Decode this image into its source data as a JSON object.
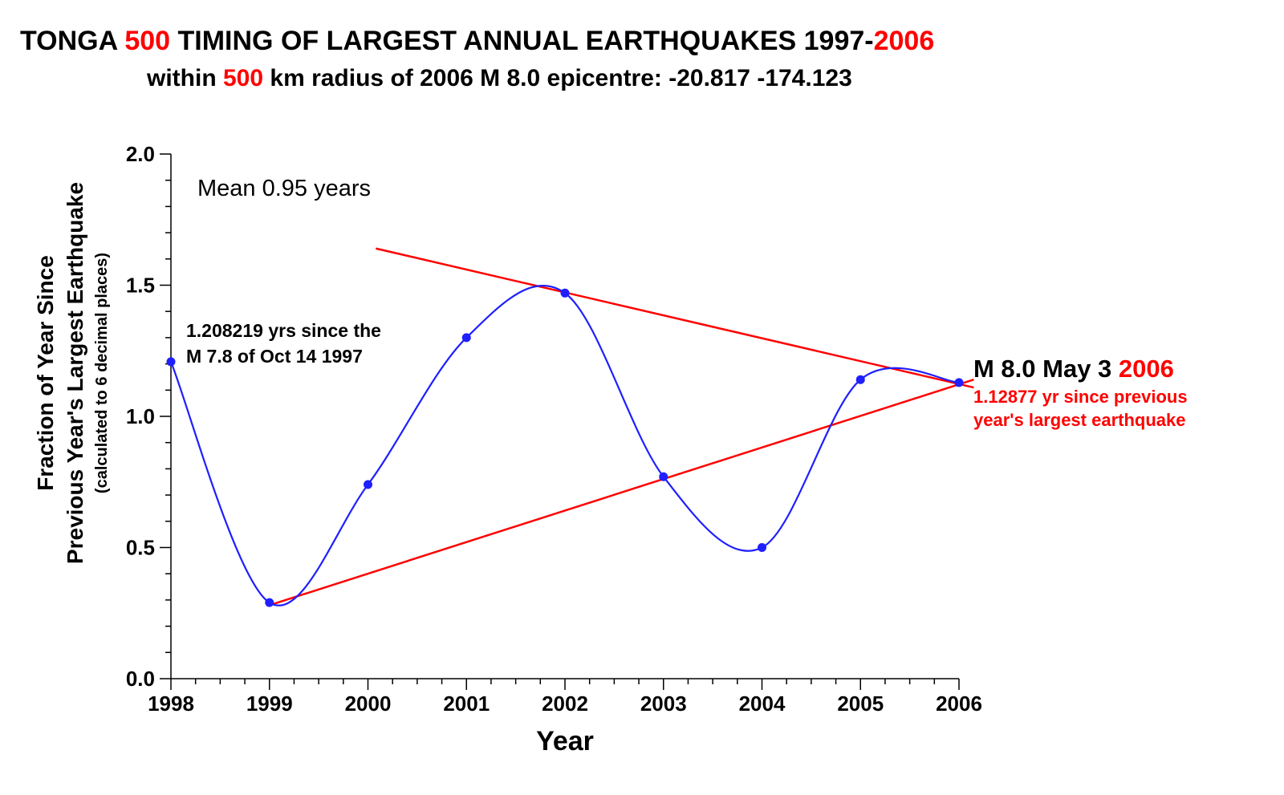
{
  "chart_data": {
    "type": "line",
    "title": {
      "part1": "TONGA ",
      "part2": "500",
      "part3": " TIMING OF LARGEST ANNUAL EARTHQUAKES 1997-",
      "part4": "2006"
    },
    "subtitle": {
      "part1": "within ",
      "part2": "500",
      "part3": " km radius of 2006 M 8.0 epicentre: -20.817 -174.123"
    },
    "xlabel": "Year",
    "ylabel": {
      "line1": "Fraction of Year Since",
      "line2": "Previous Year's Largest Earthquake",
      "line3": "(calculated to 6 decimal places)"
    },
    "xlim": [
      1998,
      2006
    ],
    "ylim": [
      0,
      2.0
    ],
    "x_ticks": [
      "1998",
      "1999",
      "2000",
      "2001",
      "2002",
      "2003",
      "2004",
      "2005",
      "2006"
    ],
    "y_ticks": [
      "0.0",
      "0.5",
      "1.0",
      "1.5",
      "2.0"
    ],
    "grid": false,
    "series": [
      {
        "color": "#1f1fff",
        "x": [
          1998,
          1999,
          2000,
          2001,
          2002,
          2003,
          2004,
          2005,
          2006
        ],
        "y": [
          1.208219,
          0.29,
          0.74,
          1.3,
          1.47,
          0.77,
          0.5,
          1.14,
          1.12877
        ]
      }
    ],
    "trend_lines": [
      {
        "color": "#ff0000",
        "x": [
          2000.08,
          2006.15
        ],
        "y": [
          1.64,
          1.11
        ]
      },
      {
        "color": "#ff0000",
        "x": [
          1999.0,
          2006.15
        ],
        "y": [
          0.28,
          1.14
        ]
      }
    ],
    "annotations": {
      "mean": "Mean 0.95 years",
      "first_line1": "1.208219 yrs since the",
      "first_line2": "M 7.8 of Oct 14 1997",
      "last_title_part1": "M 8.0 May 3 ",
      "last_title_part2": "2006",
      "last_line1": "1.12877 yr since previous",
      "last_line2": "year's largest earthquake"
    },
    "colors": {
      "black": "#000000",
      "red": "#ff0000",
      "series": "#1f1fff"
    }
  }
}
